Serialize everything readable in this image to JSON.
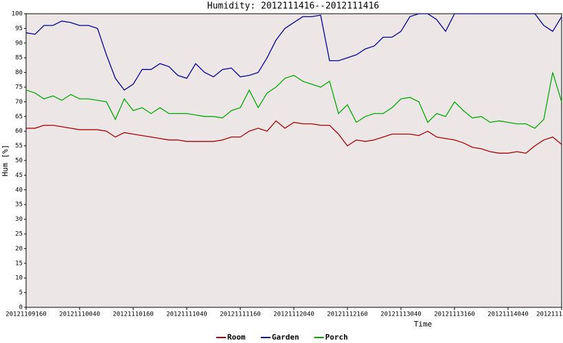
{
  "chart_data": {
    "type": "line",
    "title": "Humidity: 2012111416--2012111416",
    "y_label": "Hum [%]",
    "x_label": "Time",
    "x": [
      0,
      2,
      4,
      6,
      8,
      10,
      12,
      14,
      16,
      18,
      20,
      22,
      24,
      26,
      28,
      30,
      32,
      34,
      36,
      38,
      40,
      42,
      44,
      46,
      48,
      50,
      52,
      54,
      56,
      58,
      60,
      62,
      64,
      66,
      68,
      70,
      72,
      74,
      76,
      78,
      80,
      82,
      84,
      86,
      88,
      90,
      92,
      94,
      96,
      98,
      100,
      102,
      104,
      106,
      108,
      110,
      112,
      114,
      116,
      118,
      120
    ],
    "series": [
      {
        "name": "Room",
        "color": "#aa0000",
        "values": [
          61,
          61,
          62,
          62,
          61.5,
          61,
          60.5,
          60.5,
          60.5,
          60,
          58,
          59.5,
          59,
          58.5,
          58,
          57.5,
          57,
          57,
          56.5,
          56.5,
          56.5,
          56.5,
          57,
          58,
          58,
          60,
          61,
          60,
          63.5,
          61,
          63,
          62.5,
          62.5,
          62,
          62,
          59,
          55,
          57,
          56.5,
          57,
          58,
          59,
          59,
          59,
          58.5,
          60,
          58,
          57.5,
          57,
          56,
          54.5,
          54,
          53,
          52.5,
          52.5,
          53,
          52.5,
          55,
          57,
          58,
          55.5
        ]
      },
      {
        "name": "Garden",
        "color": "#000099",
        "values": [
          93.5,
          93,
          96,
          96,
          97.5,
          97,
          96,
          96,
          95,
          86,
          78,
          74,
          76,
          81,
          81,
          83,
          82,
          79,
          78,
          83,
          80,
          78.5,
          81,
          81.5,
          78.5,
          79,
          80,
          85,
          91,
          95,
          97,
          99,
          99,
          99.5,
          84,
          84,
          85,
          86,
          88,
          89,
          92,
          92,
          94,
          99,
          100,
          100,
          98,
          94,
          100,
          100,
          100,
          100,
          100,
          100,
          100,
          100,
          100,
          100,
          96,
          94,
          99
        ]
      },
      {
        "name": "Porch",
        "color": "#00aa00",
        "values": [
          74,
          73,
          71,
          72,
          70.5,
          72.5,
          71,
          71,
          70.5,
          70,
          64,
          71,
          67,
          68,
          66,
          68,
          66,
          66,
          66,
          65.5,
          65,
          65,
          64.5,
          67,
          68,
          74,
          68,
          73,
          75,
          78,
          79,
          77,
          76,
          75,
          77,
          66,
          69,
          63,
          65,
          66,
          66,
          68,
          71,
          71.5,
          70,
          63,
          66,
          65,
          70,
          67,
          64.5,
          65,
          63,
          63.5,
          63,
          62.5,
          62.5,
          61,
          64,
          80,
          70
        ]
      }
    ],
    "xlim": [
      0,
      120
    ],
    "xticks": [
      {
        "value": 0,
        "label": "20121109160"
      },
      {
        "value": 12,
        "label": "20121110040"
      },
      {
        "value": 24,
        "label": "20121110160"
      },
      {
        "value": 36,
        "label": "20121111040"
      },
      {
        "value": 48,
        "label": "20121111160"
      },
      {
        "value": 60,
        "label": "20121112040"
      },
      {
        "value": 72,
        "label": "20121112160"
      },
      {
        "value": 84,
        "label": "20121113040"
      },
      {
        "value": 96,
        "label": "20121113160"
      },
      {
        "value": 108,
        "label": "20121114040"
      },
      {
        "value": 120,
        "label": "2012111"
      }
    ],
    "ylim": [
      0,
      100
    ],
    "yticks": [
      0,
      5,
      10,
      15,
      20,
      25,
      30,
      35,
      40,
      45,
      50,
      55,
      60,
      65,
      70,
      75,
      80,
      85,
      90,
      95,
      100
    ],
    "plot_background": "#ede6e6",
    "legend": "bottom"
  }
}
